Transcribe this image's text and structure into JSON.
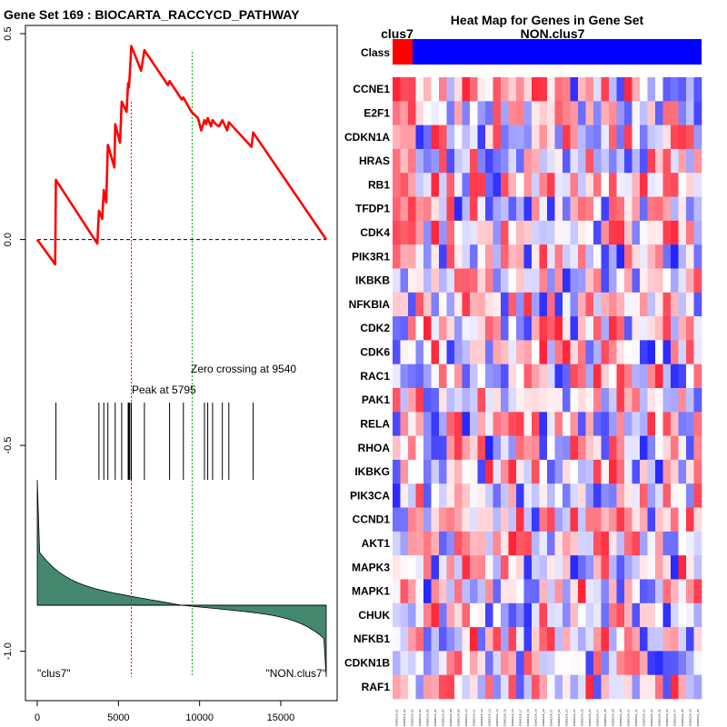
{
  "chart_data": [
    {
      "type": "line",
      "title": "Gene Set  169 : BIOCARTA_RACCYCD_PATHWAY",
      "x_range": [
        0,
        17800
      ],
      "x_ticks": [
        0,
        5000,
        10000,
        15000
      ],
      "x_tick_labels": [
        "0",
        "5000",
        "10000",
        "15000"
      ],
      "y_range": [
        -1.12,
        0.52
      ],
      "y_ticks": [
        0.5,
        0.0,
        -0.5,
        -1.0
      ],
      "y_tick_labels": [
        "0.5",
        "0.0",
        "-0.5",
        "-1.0"
      ],
      "peak_label": "Peak at 5795",
      "peak_x": 5795,
      "zero_label": "Zero crossing at 9540",
      "zero_x": 9540,
      "left_label": "\"clus7\"",
      "right_label": "\"NON.clus7\"",
      "running_es": [
        [
          0,
          0
        ],
        [
          1100,
          -0.06
        ],
        [
          1150,
          0.145
        ],
        [
          3700,
          -0.01
        ],
        [
          3800,
          0.07
        ],
        [
          4000,
          0.05
        ],
        [
          4100,
          0.12
        ],
        [
          4250,
          0.09
        ],
        [
          4350,
          0.23
        ],
        [
          4750,
          0.175
        ],
        [
          4800,
          0.28
        ],
        [
          5100,
          0.235
        ],
        [
          5200,
          0.335
        ],
        [
          5500,
          0.31
        ],
        [
          5600,
          0.38
        ],
        [
          5650,
          0.37
        ],
        [
          5700,
          0.4
        ],
        [
          5795,
          0.47
        ],
        [
          6400,
          0.41
        ],
        [
          6600,
          0.46
        ],
        [
          8050,
          0.375
        ],
        [
          8150,
          0.385
        ],
        [
          8900,
          0.34
        ],
        [
          9000,
          0.345
        ],
        [
          9500,
          0.31
        ],
        [
          9900,
          0.295
        ],
        [
          10100,
          0.265
        ],
        [
          10300,
          0.29
        ],
        [
          10400,
          0.28
        ],
        [
          10500,
          0.295
        ],
        [
          10700,
          0.275
        ],
        [
          10800,
          0.29
        ],
        [
          11000,
          0.28
        ],
        [
          11200,
          0.275
        ],
        [
          11400,
          0.29
        ],
        [
          11700,
          0.265
        ],
        [
          11800,
          0.285
        ],
        [
          13200,
          0.225
        ],
        [
          13300,
          0.26
        ],
        [
          17800,
          0
        ]
      ],
      "hit_positions": [
        1150,
        3800,
        4100,
        4350,
        4800,
        5200,
        5600,
        5650,
        5700,
        5795,
        6600,
        8150,
        9000,
        10300,
        10500,
        10800,
        11400,
        11800,
        13300
      ],
      "ranked_metric": {
        "start": 1.0,
        "baseline_share": 0.54
      }
    },
    {
      "type": "heatmap",
      "title": "Heat Map for Genes in Gene Set",
      "class_row_label": "Class",
      "group_labels": [
        "clus7",
        "NON.clus7"
      ],
      "group_sizes": [
        3,
        37
      ],
      "genes": [
        "CCNE1",
        "E2F1",
        "CDKN1A",
        "HRAS",
        "RB1",
        "TFDP1",
        "CDK4",
        "PIK3R1",
        "IKBKB",
        "NFKBIA",
        "CDK2",
        "CDK6",
        "RAC1",
        "PAK1",
        "RELA",
        "RHOA",
        "IKBKG",
        "PIK3CA",
        "CCND1",
        "AKT1",
        "MAPK3",
        "MAPK1",
        "CHUK",
        "NFKB1",
        "CDKN1B",
        "RAF1"
      ],
      "sample_labels": [
        "GSM1234_01",
        "GSM1234_02",
        "GSM1234_03",
        "GSM1234_04",
        "GSM1234_05",
        "GSM1234_06",
        "GSM1234_07",
        "GSM1234_08",
        "GSM1234_09",
        "GSM1234_10",
        "GSM1234_11",
        "GSM1234_12",
        "GSM1234_13",
        "GSM1234_14",
        "GSM1234_15",
        "GSM1234_16",
        "GSM1234_17",
        "GSM1234_18",
        "GSM1234_19",
        "GSM1234_20",
        "GSM1234_21",
        "GSM1234_22",
        "GSM1234_23",
        "GSM1234_24",
        "GSM1234_25",
        "GSM1234_26",
        "GSM1234_27",
        "GSM1234_28",
        "GSM1234_29",
        "GSM1234_30",
        "GSM1234_31",
        "GSM1234_32",
        "GSM1234_33",
        "GSM1234_34",
        "GSM1234_35",
        "GSM1234_36",
        "GSM1234_37",
        "GSM1234_38",
        "GSM1234_39",
        "GSM1234_40"
      ],
      "value_range": [
        -1,
        1
      ],
      "values_seed": 169
    }
  ],
  "colors": {
    "es_line": "#ff0000",
    "peak_line": "#ff0000",
    "zero_line": "#00aa00",
    "metric_fill": "#448870",
    "class_clus7": "#ff0000",
    "class_non": "#0000ff",
    "high": "#ff0000",
    "low": "#0000ff"
  }
}
